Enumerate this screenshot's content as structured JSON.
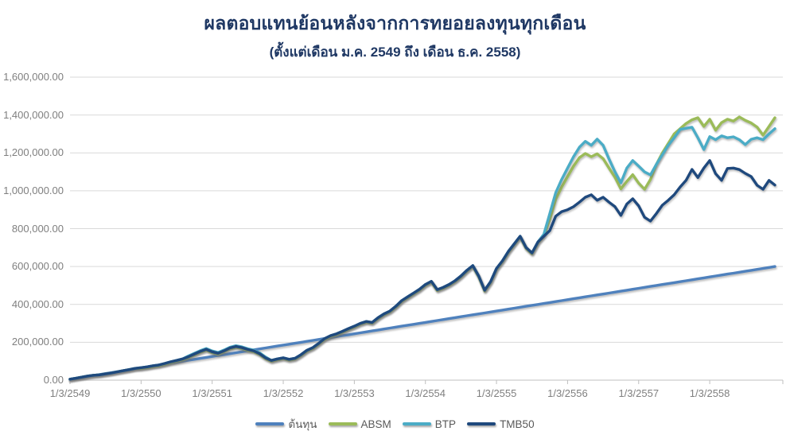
{
  "title": "ผลตอบแทนย้อนหลังจากการทยอยลงทุนทุกเดือน",
  "subtitle": "(ตั้งแต่เดือน ม.ค. 2549 ถึง เดือน ธ.ค. 2558)",
  "colors": {
    "title": "#1F3864",
    "gridline": "#D9D9D9",
    "axis": "#BFBFBF",
    "axis_text": "#7F7F7F",
    "legend_text": "#595959"
  },
  "chart_data": {
    "type": "line",
    "title": "ผลตอบแทนย้อนหลังจากการทยอยลงทุนทุกเดือน",
    "subtitle": "(ตั้งแต่เดือน ม.ค. 2549 ถึง เดือน ธ.ค. 2558)",
    "x_description": "monthly points, Jan 2549 to Dec 2558",
    "n_points": 120,
    "unit_multiplier": 1000,
    "ylim": [
      0,
      1600000
    ],
    "grid": "horizontal",
    "legend_position": "bottom",
    "y_tick_labels": [
      "1,600,000.00",
      "1,400,000.00",
      "1,200,000.00",
      "1,000,000.00",
      "800,000.00",
      "600,000.00",
      "400,000.00",
      "200,000.00",
      "0.00"
    ],
    "x_tick_labels": [
      "1/3/2549",
      "1/3/2550",
      "1/3/2551",
      "1/3/2552",
      "1/3/2553",
      "1/3/2554",
      "1/3/2555",
      "1/3/2556",
      "1/3/2557",
      "1/3/2558"
    ],
    "x_tick_month_indices": [
      0,
      12,
      24,
      36,
      48,
      60,
      72,
      84,
      96,
      108
    ],
    "series": [
      {
        "id": "cost",
        "name": "ต้นทุน",
        "color": "#4F81BD",
        "values_thousands": [
          5,
          10,
          15,
          20,
          25,
          30,
          35,
          40,
          45,
          50,
          55,
          60,
          65,
          70,
          75,
          80,
          85,
          90,
          95,
          100,
          105,
          110,
          115,
          120,
          125,
          130,
          135,
          140,
          145,
          150,
          155,
          160,
          165,
          170,
          175,
          180,
          185,
          190,
          195,
          200,
          205,
          210,
          215,
          220,
          225,
          230,
          235,
          240,
          245,
          250,
          255,
          260,
          265,
          270,
          275,
          280,
          285,
          290,
          295,
          300,
          305,
          310,
          315,
          320,
          325,
          330,
          335,
          340,
          345,
          350,
          355,
          360,
          365,
          370,
          375,
          380,
          385,
          390,
          395,
          400,
          405,
          410,
          415,
          420,
          425,
          430,
          435,
          440,
          445,
          450,
          455,
          460,
          465,
          470,
          475,
          480,
          485,
          490,
          495,
          500,
          505,
          510,
          515,
          520,
          525,
          530,
          535,
          540,
          545,
          550,
          555,
          560,
          565,
          570,
          575,
          580,
          585,
          590,
          595,
          600
        ]
      },
      {
        "id": "absm",
        "name": "ABSM",
        "color": "#9BBB59",
        "values_thousands": [
          5,
          10,
          16,
          22,
          26,
          28,
          33,
          38,
          44,
          50,
          56,
          62,
          61,
          65,
          71,
          75,
          83,
          92,
          99,
          107,
          119,
          133,
          147,
          158,
          145,
          137,
          150,
          165,
          173,
          167,
          157,
          150,
          135,
          113,
          99,
          107,
          113,
          105,
          111,
          130,
          153,
          167,
          190,
          215,
          230,
          240,
          253,
          267,
          280,
          295,
          305,
          300,
          325,
          345,
          360,
          385,
          415,
          435,
          455,
          475,
          500,
          517,
          473,
          485,
          500,
          520,
          545,
          575,
          600,
          545,
          470,
          515,
          585,
          625,
          675,
          715,
          755,
          695,
          667,
          725,
          760,
          850,
          955,
          1020,
          1075,
          1130,
          1175,
          1197,
          1180,
          1195,
          1170,
          1120,
          1071,
          1010,
          1050,
          1085,
          1040,
          1008,
          1060,
          1140,
          1200,
          1250,
          1300,
          1328,
          1355,
          1375,
          1386,
          1340,
          1378,
          1320,
          1360,
          1378,
          1368,
          1390,
          1372,
          1358,
          1336,
          1294,
          1340,
          1386
        ]
      },
      {
        "id": "btp",
        "name": "BTP",
        "color": "#4BACC6",
        "values_thousands": [
          5,
          10,
          16,
          22,
          26,
          28,
          33,
          38,
          44,
          50,
          56,
          62,
          66,
          70,
          76,
          80,
          88,
          97,
          104,
          112,
          128,
          142,
          156,
          167,
          154,
          146,
          159,
          174,
          182,
          176,
          166,
          159,
          144,
          122,
          104,
          112,
          118,
          110,
          116,
          135,
          158,
          172,
          195,
          220,
          235,
          245,
          258,
          272,
          285,
          300,
          310,
          305,
          330,
          350,
          365,
          390,
          420,
          440,
          460,
          480,
          505,
          522,
          478,
          490,
          505,
          525,
          550,
          580,
          605,
          550,
          475,
          520,
          590,
          630,
          680,
          720,
          760,
          700,
          672,
          730,
          770,
          880,
          990,
          1060,
          1120,
          1180,
          1230,
          1261,
          1240,
          1273,
          1240,
          1168,
          1100,
          1042,
          1120,
          1160,
          1130,
          1100,
          1084,
          1140,
          1190,
          1240,
          1280,
          1324,
          1330,
          1336,
          1280,
          1218,
          1286,
          1270,
          1290,
          1280,
          1285,
          1270,
          1244,
          1272,
          1280,
          1270,
          1300,
          1328
        ]
      },
      {
        "id": "tmb50",
        "name": "TMB50",
        "color": "#1F497D",
        "values_thousands": [
          5,
          10,
          16,
          22,
          26,
          28,
          33,
          38,
          44,
          50,
          56,
          62,
          66,
          70,
          76,
          80,
          88,
          97,
          104,
          112,
          124,
          138,
          152,
          163,
          150,
          142,
          155,
          170,
          178,
          172,
          162,
          155,
          140,
          118,
          104,
          112,
          118,
          110,
          116,
          135,
          158,
          172,
          195,
          220,
          235,
          245,
          258,
          272,
          285,
          300,
          310,
          305,
          330,
          350,
          365,
          390,
          420,
          440,
          460,
          480,
          505,
          522,
          478,
          490,
          505,
          525,
          550,
          580,
          605,
          550,
          475,
          520,
          590,
          630,
          680,
          720,
          760,
          700,
          672,
          730,
          760,
          790,
          866,
          890,
          900,
          916,
          940,
          966,
          979,
          950,
          966,
          940,
          916,
          870,
          930,
          958,
          920,
          860,
          840,
          880,
          924,
          950,
          979,
          1020,
          1055,
          1113,
          1070,
          1120,
          1160,
          1090,
          1055,
          1118,
          1120,
          1112,
          1092,
          1075,
          1029,
          1008,
          1055,
          1030
        ]
      }
    ]
  },
  "legend": {
    "items": [
      {
        "label": "ต้นทุน",
        "color": "#4F81BD"
      },
      {
        "label": "ABSM",
        "color": "#9BBB59"
      },
      {
        "label": "BTP",
        "color": "#4BACC6"
      },
      {
        "label": "TMB50",
        "color": "#1F497D"
      }
    ]
  }
}
